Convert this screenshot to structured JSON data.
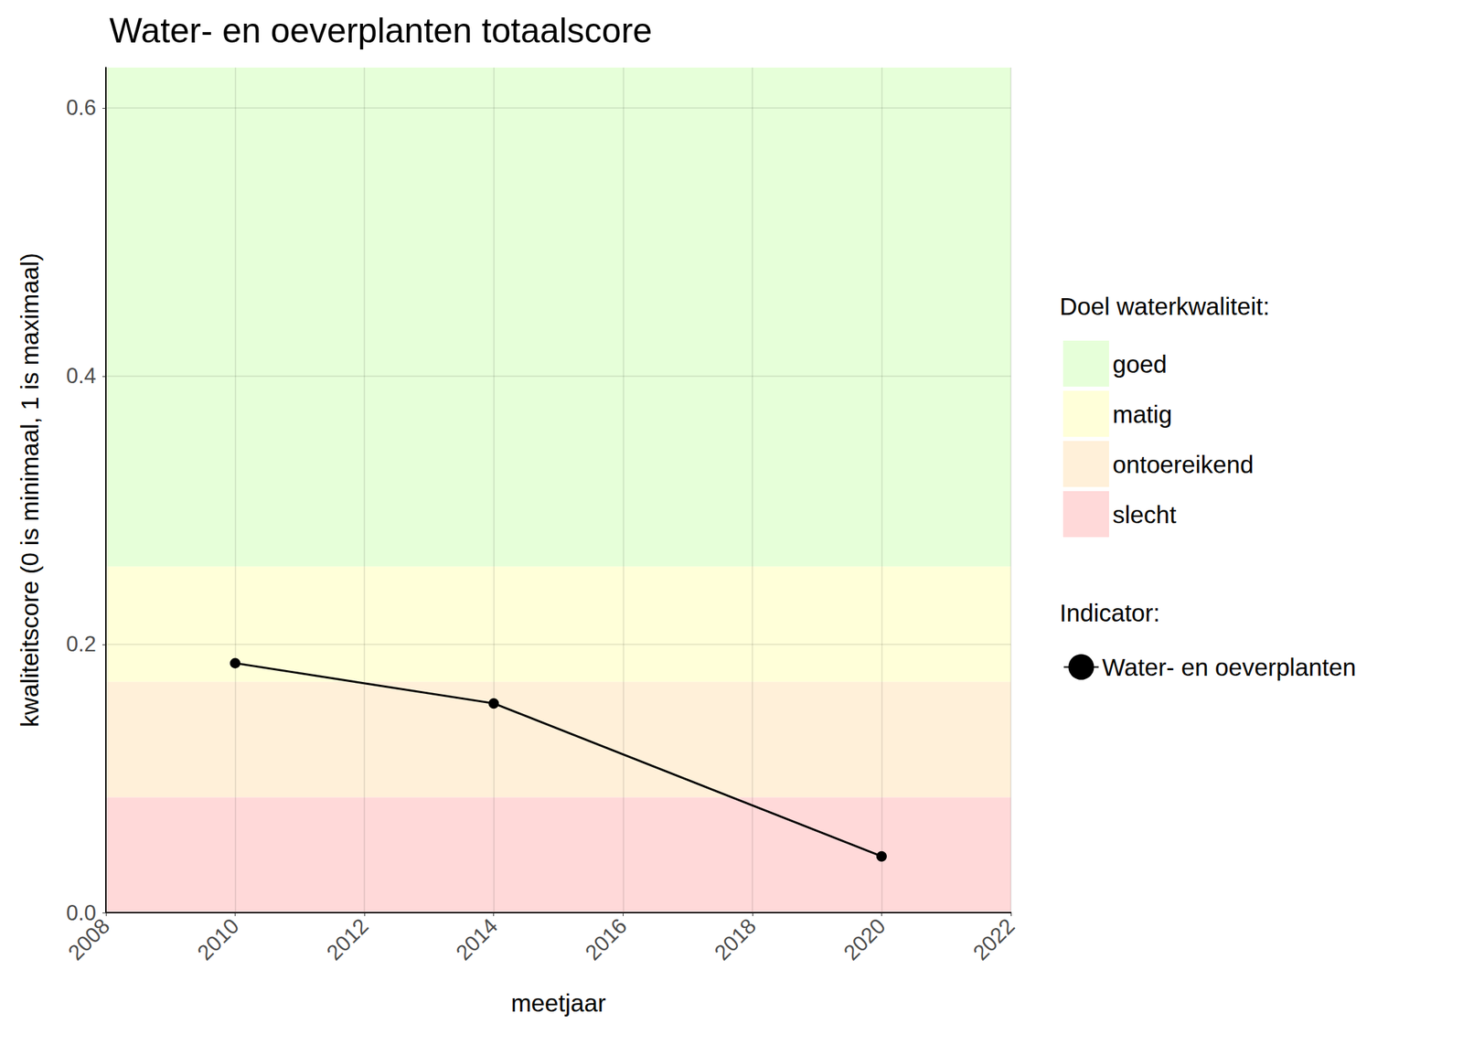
{
  "chart_data": {
    "type": "line",
    "title": "Water- en oeverplanten totaalscore",
    "x_label": "meetjaar",
    "y_label": "kwaliteitscore (0 is minimaal, 1 is maximaal)",
    "x": [
      2010,
      2014,
      2020
    ],
    "series": [
      {
        "name": "Water- en oeverplanten",
        "color": "#000000",
        "marker": "circle",
        "values": [
          0.186,
          0.156,
          0.042
        ]
      }
    ],
    "xlim": [
      2008,
      2022
    ],
    "xticks": [
      2008,
      2010,
      2012,
      2014,
      2016,
      2018,
      2020,
      2022
    ],
    "ylim": [
      0,
      0.63
    ],
    "yticks": [
      {
        "value": 0,
        "label": "0.0"
      },
      {
        "value": 0.2,
        "label": "0.2"
      },
      {
        "value": 0.4,
        "label": "0.4"
      },
      {
        "value": 0.6,
        "label": "0.6"
      }
    ],
    "grid": true,
    "bands_title": "Doel waterkwaliteit:",
    "series_legend_title": "Indicator:",
    "bands": [
      {
        "name": "goed",
        "color": "#e6ffd9",
        "from": 0.258,
        "to": 0.63
      },
      {
        "name": "matig",
        "color": "#ffffd9",
        "from": 0.172,
        "to": 0.258
      },
      {
        "name": "ontoereikend",
        "color": "#fff0d9",
        "from": 0.086,
        "to": 0.172
      },
      {
        "name": "slecht",
        "color": "#ffd9d9",
        "from": 0,
        "to": 0.086
      }
    ]
  }
}
